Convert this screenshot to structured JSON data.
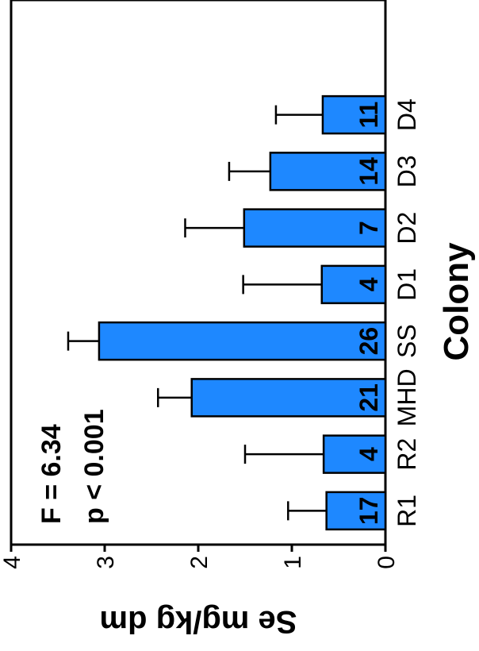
{
  "chart_data": {
    "type": "bar",
    "orientation": "rotated-90-ccw",
    "categories": [
      "R1",
      "R2",
      "MHD",
      "SS",
      "D1",
      "D2",
      "D3",
      "D4"
    ],
    "values": [
      0.63,
      0.66,
      2.07,
      3.06,
      0.68,
      1.51,
      1.23,
      0.67
    ],
    "errors": [
      0.41,
      0.84,
      0.36,
      0.33,
      0.84,
      0.63,
      0.44,
      0.5
    ],
    "n_labels": [
      "17",
      "4",
      "21",
      "26",
      "4",
      "7",
      "14",
      "11"
    ],
    "ylim": [
      0,
      4
    ],
    "yticks": [
      0,
      1,
      2,
      3,
      4
    ],
    "ylabel": "Se mg/kg dm",
    "xlabel": "Colony",
    "annotations": [
      "F = 6.34",
      "p < 0.001"
    ],
    "bar_color": "#1e88ff",
    "grid": false
  }
}
